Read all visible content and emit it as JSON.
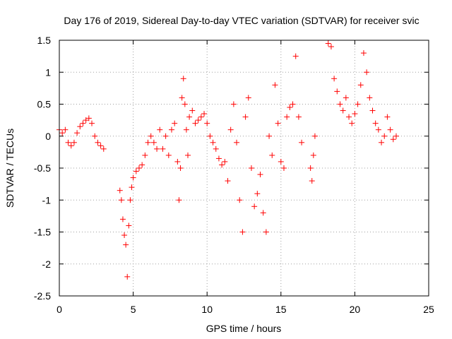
{
  "chart_data": {
    "type": "scatter",
    "title": "Day 176 of 2019, Sidereal Day-to-day VTEC variation (SDTVAR) for receiver svic",
    "xlabel": "GPS time / hours",
    "ylabel": "SDTVAR / TECUs",
    "xlim": [
      0,
      25
    ],
    "ylim": [
      -2.5,
      1.5
    ],
    "xticks": [
      0,
      5,
      10,
      15,
      20,
      25
    ],
    "xtick_labels": [
      "0",
      "5",
      "10",
      "15",
      "20",
      "25"
    ],
    "yticks": [
      -2.5,
      -2,
      -1.5,
      -1,
      -0.5,
      0,
      0.5,
      1,
      1.5
    ],
    "ytick_labels": [
      "-2.5",
      "-2",
      "-1.5",
      "-1",
      "-0.5",
      "0",
      "0.5",
      "1",
      "1.5"
    ],
    "grid": true,
    "marker": "+",
    "series": [
      {
        "name": "svic",
        "color": "#ff0000",
        "x": [
          0.0,
          0.2,
          0.4,
          0.6,
          0.8,
          1.0,
          1.2,
          1.4,
          1.6,
          1.8,
          2.0,
          2.2,
          2.4,
          2.6,
          2.8,
          3.0,
          4.1,
          4.2,
          4.3,
          4.4,
          4.5,
          4.6,
          4.7,
          4.8,
          4.9,
          5.0,
          5.2,
          5.4,
          5.6,
          5.8,
          6.0,
          6.2,
          6.4,
          6.6,
          6.8,
          7.0,
          7.2,
          7.4,
          7.6,
          7.8,
          8.0,
          8.1,
          8.2,
          8.3,
          8.4,
          8.5,
          8.6,
          8.7,
          8.8,
          9.0,
          9.2,
          9.4,
          9.6,
          9.8,
          10.0,
          10.2,
          10.4,
          10.6,
          10.8,
          11.0,
          11.2,
          11.4,
          11.6,
          11.8,
          12.0,
          12.2,
          12.4,
          12.6,
          12.8,
          13.0,
          13.2,
          13.4,
          13.6,
          13.8,
          14.0,
          14.2,
          14.4,
          14.6,
          14.8,
          15.0,
          15.2,
          15.4,
          15.6,
          15.8,
          16.0,
          16.2,
          16.4,
          17.0,
          17.1,
          17.2,
          17.3,
          18.2,
          18.4,
          18.6,
          18.8,
          19.0,
          19.2,
          19.4,
          19.6,
          19.8,
          20.0,
          20.2,
          20.4,
          20.6,
          20.8,
          21.0,
          21.2,
          21.4,
          21.6,
          21.8,
          22.0,
          22.2,
          22.4,
          22.6,
          22.8
        ],
        "y": [
          0.1,
          0.05,
          0.1,
          -0.1,
          -0.15,
          -0.1,
          0.05,
          0.15,
          0.2,
          0.25,
          0.28,
          0.2,
          0.0,
          -0.1,
          -0.15,
          -0.2,
          -0.85,
          -1.0,
          -1.3,
          -1.55,
          -1.7,
          -2.2,
          -1.4,
          -1.0,
          -0.8,
          -0.65,
          -0.55,
          -0.5,
          -0.45,
          -0.3,
          -0.1,
          0.0,
          -0.1,
          -0.2,
          0.1,
          -0.2,
          0.0,
          -0.3,
          0.1,
          0.2,
          -0.4,
          -1.0,
          -0.5,
          0.6,
          0.9,
          0.5,
          0.1,
          -0.3,
          0.3,
          0.4,
          0.2,
          0.25,
          0.3,
          0.35,
          0.2,
          0.0,
          -0.1,
          -0.2,
          -0.35,
          -0.45,
          -0.4,
          -0.7,
          0.1,
          0.5,
          -0.1,
          -1.0,
          -1.5,
          0.3,
          0.6,
          -0.5,
          -1.1,
          -0.9,
          -0.6,
          -1.2,
          -1.5,
          0.0,
          -0.3,
          0.8,
          0.2,
          -0.4,
          -0.5,
          0.3,
          0.45,
          0.5,
          1.25,
          0.3,
          -0.1,
          -0.5,
          -0.7,
          -0.3,
          0.0,
          1.45,
          1.4,
          0.9,
          0.7,
          0.5,
          0.4,
          0.6,
          0.3,
          0.2,
          0.35,
          0.5,
          0.8,
          1.3,
          1.0,
          0.6,
          0.4,
          0.2,
          0.1,
          -0.1,
          0.0,
          0.3,
          0.1,
          -0.05,
          0.0
        ]
      }
    ]
  }
}
